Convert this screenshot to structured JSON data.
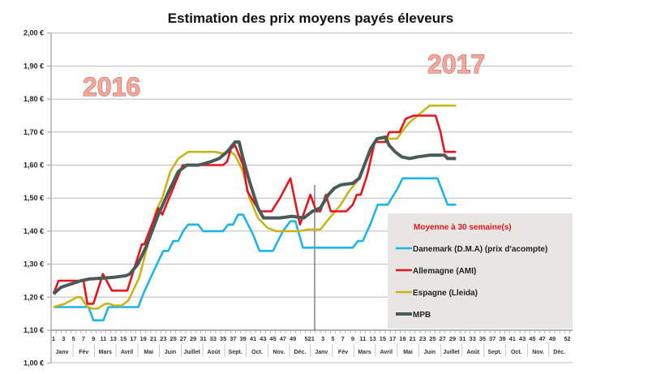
{
  "chart_data": {
    "type": "line",
    "title": "Estimation des prix moyens payés éleveurs",
    "annotations": [
      "2016",
      "2017"
    ],
    "ylim": [
      1.0,
      2.0
    ],
    "y_ticks": [
      "1,00 €",
      "1,10 €",
      "1,20 €",
      "1,30 €",
      "1,40 €",
      "1,50 €",
      "1,60 €",
      "1,70 €",
      "1,80 €",
      "1,90 €",
      "2,00 €"
    ],
    "y_tick_values": [
      1.0,
      1.1,
      1.2,
      1.3,
      1.4,
      1.5,
      1.6,
      1.7,
      1.8,
      1.9,
      2.0
    ],
    "x_unit": "week index from week 1 of 2016 (0) to week 52 of 2017 (103)",
    "xlim": [
      0,
      103
    ],
    "week_ticks": [
      "1",
      "3",
      "5",
      "7",
      "9",
      "11",
      "13",
      "15",
      "17",
      "19",
      "21",
      "23",
      "25",
      "27",
      "29",
      "31",
      "33",
      "35",
      "37",
      "39",
      "41",
      "43",
      "45",
      "47",
      "49",
      "52"
    ],
    "week_tick_index": [
      0,
      2,
      4,
      6,
      8,
      10,
      12,
      14,
      16,
      18,
      20,
      22,
      24,
      26,
      28,
      30,
      32,
      34,
      36,
      38,
      40,
      42,
      44,
      46,
      48,
      51
    ],
    "months": [
      "Janv",
      "Fév",
      "Mars",
      "Avril",
      "Mai",
      "Juin",
      "Juillet",
      "Août",
      "Sept.",
      "Oct.",
      "Nov.",
      "Déc."
    ],
    "year_separator_index": 52.3,
    "grid": true,
    "legend": {
      "title": "Moyenne à  30 semaine(s)",
      "placement": "bottom-right"
    },
    "series": [
      {
        "name": "Danemark (D.M.A) (prix d'acompte)",
        "color": "#1eb4ea",
        "points": [
          [
            0,
            1.17
          ],
          [
            7,
            1.17
          ],
          [
            8,
            1.13
          ],
          [
            10,
            1.13
          ],
          [
            11,
            1.17
          ],
          [
            17,
            1.17
          ],
          [
            18,
            1.21
          ],
          [
            19.5,
            1.26
          ],
          [
            22,
            1.34
          ],
          [
            23,
            1.34
          ],
          [
            24,
            1.37
          ],
          [
            25,
            1.37
          ],
          [
            26,
            1.4
          ],
          [
            27,
            1.42
          ],
          [
            29,
            1.42
          ],
          [
            30,
            1.4
          ],
          [
            34,
            1.4
          ],
          [
            35,
            1.42
          ],
          [
            36,
            1.42
          ],
          [
            37,
            1.45
          ],
          [
            38,
            1.45
          ],
          [
            40,
            1.39
          ],
          [
            41.3,
            1.34
          ],
          [
            44,
            1.34
          ],
          [
            46,
            1.4
          ],
          [
            47.5,
            1.43
          ],
          [
            48.5,
            1.43
          ],
          [
            50,
            1.35
          ],
          [
            60,
            1.35
          ],
          [
            61,
            1.37
          ],
          [
            62,
            1.37
          ],
          [
            63.5,
            1.42
          ],
          [
            65,
            1.48
          ],
          [
            67,
            1.48
          ],
          [
            69,
            1.53
          ],
          [
            70,
            1.56
          ],
          [
            77,
            1.56
          ],
          [
            79,
            1.48
          ],
          [
            80.7,
            1.48
          ]
        ]
      },
      {
        "name": "Allemagne (AMI)",
        "color": "#e8141c",
        "points": [
          [
            0,
            1.21
          ],
          [
            1,
            1.25
          ],
          [
            6,
            1.25
          ],
          [
            6.8,
            1.18
          ],
          [
            8,
            1.18
          ],
          [
            9.9,
            1.27
          ],
          [
            11.7,
            1.22
          ],
          [
            14.8,
            1.22
          ],
          [
            17.7,
            1.36
          ],
          [
            18.2,
            1.36
          ],
          [
            21,
            1.47
          ],
          [
            21.8,
            1.45
          ],
          [
            25.9,
            1.6
          ],
          [
            34,
            1.6
          ],
          [
            34.8,
            1.61
          ],
          [
            35.6,
            1.65
          ],
          [
            36.4,
            1.66
          ],
          [
            38,
            1.6
          ],
          [
            38.9,
            1.52
          ],
          [
            41.3,
            1.46
          ],
          [
            43.7,
            1.46
          ],
          [
            45.4,
            1.5
          ],
          [
            47.5,
            1.56
          ],
          [
            49.4,
            1.42
          ],
          [
            51.5,
            1.51
          ],
          [
            52.7,
            1.46
          ],
          [
            53.5,
            1.46
          ],
          [
            54.6,
            1.51
          ],
          [
            55.6,
            1.46
          ],
          [
            58.7,
            1.46
          ],
          [
            60,
            1.48
          ],
          [
            60.8,
            1.51
          ],
          [
            61.6,
            1.51
          ],
          [
            62.9,
            1.57
          ],
          [
            64.4,
            1.67
          ],
          [
            66.5,
            1.67
          ],
          [
            67.3,
            1.7
          ],
          [
            69.4,
            1.7
          ],
          [
            70.6,
            1.74
          ],
          [
            72.2,
            1.75
          ],
          [
            76.6,
            1.75
          ],
          [
            77.6,
            1.7
          ],
          [
            78.4,
            1.64
          ],
          [
            80.7,
            1.64
          ]
        ]
      },
      {
        "name": "Espagne (Lleida)",
        "color": "#c8b419",
        "points": [
          [
            0,
            1.17
          ],
          [
            2.3,
            1.18
          ],
          [
            4.7,
            1.2
          ],
          [
            5.5,
            1.2
          ],
          [
            6.8,
            1.17
          ],
          [
            8,
            1.165
          ],
          [
            8.8,
            1.165
          ],
          [
            10.4,
            1.18
          ],
          [
            11.2,
            1.18
          ],
          [
            12,
            1.175
          ],
          [
            13.7,
            1.175
          ],
          [
            15,
            1.19
          ],
          [
            17.2,
            1.26
          ],
          [
            18.9,
            1.36
          ],
          [
            20.5,
            1.46
          ],
          [
            21.8,
            1.5
          ],
          [
            23.4,
            1.58
          ],
          [
            25,
            1.62
          ],
          [
            27,
            1.64
          ],
          [
            32.4,
            1.64
          ],
          [
            34,
            1.635
          ],
          [
            35.6,
            1.64
          ],
          [
            36.4,
            1.63
          ],
          [
            38,
            1.58
          ],
          [
            39.3,
            1.5
          ],
          [
            41,
            1.44
          ],
          [
            42.9,
            1.41
          ],
          [
            44.6,
            1.4
          ],
          [
            49.4,
            1.4
          ],
          [
            51,
            1.405
          ],
          [
            53.5,
            1.405
          ],
          [
            54.3,
            1.42
          ],
          [
            55.9,
            1.45
          ],
          [
            57.6,
            1.48
          ],
          [
            59.2,
            1.52
          ],
          [
            60.8,
            1.55
          ],
          [
            63.3,
            1.63
          ],
          [
            64.9,
            1.68
          ],
          [
            68.9,
            1.68
          ],
          [
            69.8,
            1.7
          ],
          [
            71.4,
            1.73
          ],
          [
            73.8,
            1.76
          ],
          [
            75.4,
            1.78
          ],
          [
            80.7,
            1.78
          ]
        ]
      },
      {
        "name": "MPB",
        "color": "#4a5a58",
        "points": [
          [
            0,
            1.21
          ],
          [
            1.5,
            1.23
          ],
          [
            5.5,
            1.25
          ],
          [
            7.2,
            1.255
          ],
          [
            12,
            1.26
          ],
          [
            14.5,
            1.265
          ],
          [
            15.3,
            1.27
          ],
          [
            16.9,
            1.3
          ],
          [
            18.5,
            1.35
          ],
          [
            21,
            1.45
          ],
          [
            23.1,
            1.52
          ],
          [
            25,
            1.58
          ],
          [
            26.7,
            1.6
          ],
          [
            29.1,
            1.6
          ],
          [
            31.5,
            1.61
          ],
          [
            33.2,
            1.62
          ],
          [
            34.8,
            1.64
          ],
          [
            36.4,
            1.67
          ],
          [
            37.2,
            1.67
          ],
          [
            38,
            1.62
          ],
          [
            39.3,
            1.55
          ],
          [
            41,
            1.47
          ],
          [
            42.1,
            1.44
          ],
          [
            45.4,
            1.44
          ],
          [
            47.8,
            1.445
          ],
          [
            50.2,
            1.44
          ],
          [
            51.9,
            1.46
          ],
          [
            53.5,
            1.47
          ],
          [
            55.1,
            1.51
          ],
          [
            56.3,
            1.53
          ],
          [
            57.6,
            1.54
          ],
          [
            60,
            1.545
          ],
          [
            61.3,
            1.56
          ],
          [
            63.6,
            1.65
          ],
          [
            64.9,
            1.68
          ],
          [
            66.5,
            1.685
          ],
          [
            67.3,
            1.66
          ],
          [
            68.5,
            1.64
          ],
          [
            69.8,
            1.625
          ],
          [
            71.4,
            1.62
          ],
          [
            73,
            1.625
          ],
          [
            75.4,
            1.63
          ],
          [
            78.4,
            1.63
          ],
          [
            79,
            1.62
          ],
          [
            80.7,
            1.62
          ]
        ]
      }
    ]
  }
}
